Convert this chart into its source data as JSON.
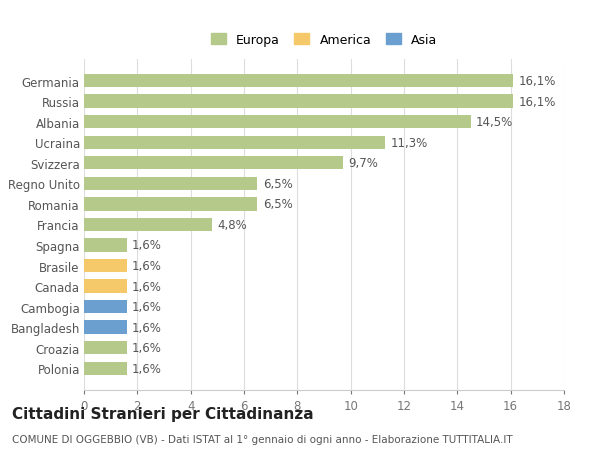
{
  "categories": [
    "Polonia",
    "Croazia",
    "Bangladesh",
    "Cambogia",
    "Canada",
    "Brasile",
    "Spagna",
    "Francia",
    "Romania",
    "Regno Unito",
    "Svizzera",
    "Ucraina",
    "Albania",
    "Russia",
    "Germania"
  ],
  "values": [
    1.6,
    1.6,
    1.6,
    1.6,
    1.6,
    1.6,
    1.6,
    4.8,
    6.5,
    6.5,
    9.7,
    11.3,
    14.5,
    16.1,
    16.1
  ],
  "labels": [
    "1,6%",
    "1,6%",
    "1,6%",
    "1,6%",
    "1,6%",
    "1,6%",
    "1,6%",
    "4,8%",
    "6,5%",
    "6,5%",
    "9,7%",
    "11,3%",
    "14,5%",
    "16,1%",
    "16,1%"
  ],
  "colors": [
    "#b5c98a",
    "#b5c98a",
    "#6a9fcf",
    "#6a9fcf",
    "#f5c96a",
    "#f5c96a",
    "#b5c98a",
    "#b5c98a",
    "#b5c98a",
    "#b5c98a",
    "#b5c98a",
    "#b5c98a",
    "#b5c98a",
    "#b5c98a",
    "#b5c98a"
  ],
  "legend": [
    {
      "label": "Europa",
      "color": "#b5c98a"
    },
    {
      "label": "America",
      "color": "#f5c96a"
    },
    {
      "label": "Asia",
      "color": "#6a9fcf"
    }
  ],
  "xlim": [
    0,
    18
  ],
  "xticks": [
    0,
    2,
    4,
    6,
    8,
    10,
    12,
    14,
    16,
    18
  ],
  "title": "Cittadini Stranieri per Cittadinanza",
  "subtitle": "COMUNE DI OGGEBBIO (VB) - Dati ISTAT al 1° gennaio di ogni anno - Elaborazione TUTTITALIA.IT",
  "background_color": "#ffffff",
  "grid_color": "#dddddd",
  "bar_height": 0.65,
  "label_fontsize": 8.5,
  "tick_fontsize": 8.5,
  "title_fontsize": 11,
  "subtitle_fontsize": 7.5
}
